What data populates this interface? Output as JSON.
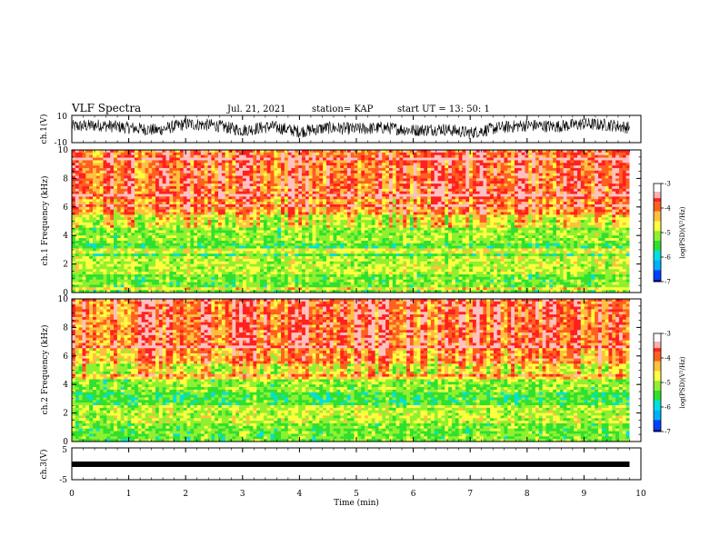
{
  "header": {
    "title": "VLF Spectra",
    "date": "Jul. 21, 2021",
    "station": "station= KAP",
    "start": "start UT =  13: 50: 1"
  },
  "chart_data": [
    {
      "type": "line",
      "panel": "ch1-waveform",
      "ylabel": "ch.1(V)",
      "ylim": [
        -10,
        10
      ],
      "y_ticks": [
        "10",
        "-10"
      ],
      "xlim": [
        0,
        10
      ],
      "series": [
        {
          "x": [
            0,
            0.5,
            1,
            1.5,
            2,
            2.5,
            3,
            3.5,
            4,
            4.5,
            5,
            5.5,
            6,
            6.5,
            7,
            7.5,
            8,
            8.5,
            9,
            9.5,
            9.8
          ],
          "y": [
            2,
            3,
            1,
            -1,
            4,
            3,
            -1,
            2,
            -2,
            1,
            0,
            1,
            -1,
            0,
            -3,
            1,
            3,
            2,
            4,
            3,
            1
          ]
        }
      ]
    },
    {
      "type": "heatmap",
      "panel": "ch1-spectrogram",
      "ylabel": "ch.1 Frequency (kHz)",
      "ylim": [
        0,
        10
      ],
      "xlim": [
        0,
        9.8
      ],
      "y_ticks": [
        "0",
        "2",
        "4",
        "6",
        "8",
        "10"
      ],
      "colorbar": {
        "label": "log(PSD)(V²/Hz)",
        "range": [
          -7,
          -3
        ],
        "ticks": [
          "-3",
          "-4",
          "-5",
          "-6",
          "-7"
        ]
      }
    },
    {
      "type": "heatmap",
      "panel": "ch2-spectrogram",
      "ylabel": "ch.2 Frequency (kHz)",
      "ylim": [
        0,
        10
      ],
      "xlim": [
        0,
        9.8
      ],
      "y_ticks": [
        "0",
        "2",
        "4",
        "6",
        "8",
        "10"
      ],
      "colorbar": {
        "label": "log(PSD)(V²/Hz)",
        "range": [
          -7,
          -3
        ],
        "ticks": [
          "-3",
          "-4",
          "-5",
          "-6",
          "-7"
        ]
      }
    },
    {
      "type": "line",
      "panel": "ch3-waveform",
      "ylabel": "ch.3(V)",
      "ylim": [
        -5,
        5
      ],
      "y_ticks": [
        "5",
        "-5"
      ],
      "xlim": [
        0,
        10
      ],
      "series": [
        {
          "x": [
            0,
            9.8
          ],
          "y": [
            0,
            0
          ]
        }
      ]
    }
  ],
  "x_axis": {
    "label": "Time (min)",
    "range": [
      0,
      10
    ],
    "ticks": [
      "0",
      "1",
      "2",
      "3",
      "4",
      "5",
      "6",
      "7",
      "8",
      "9",
      "10"
    ]
  },
  "colors": {
    "low": "#000080",
    "blue": "#0040ff",
    "cyan": "#00e0e0",
    "green": "#30e030",
    "yellow": "#ffff40",
    "red": "#ff2020",
    "high": "#ffffff"
  }
}
